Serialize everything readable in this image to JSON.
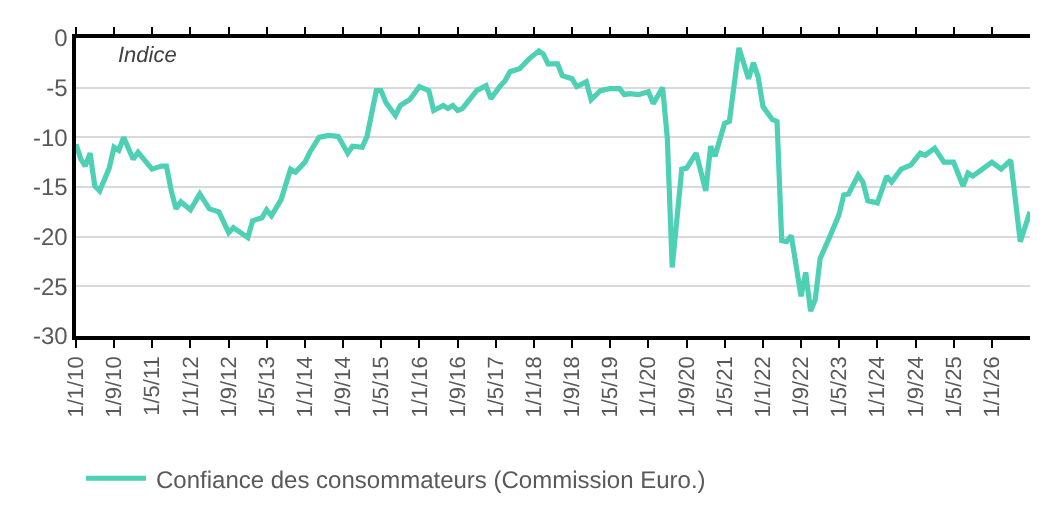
{
  "chart_data": {
    "type": "line",
    "annotations": [
      "Indice"
    ],
    "x": [
      "2010-01",
      "2010-02",
      "2010-03",
      "2010-04",
      "2010-05",
      "2010-06",
      "2010-08",
      "2010-09",
      "2010-10",
      "2010-11",
      "2011-01",
      "2011-02",
      "2011-05",
      "2011-07",
      "2011-08",
      "2011-09",
      "2011-10",
      "2011-11",
      "2012-01",
      "2012-03",
      "2012-05",
      "2012-07",
      "2012-09",
      "2012-10",
      "2013-01",
      "2013-02",
      "2013-04",
      "2013-05",
      "2013-06",
      "2013-08",
      "2013-10",
      "2013-11",
      "2014-01",
      "2014-02",
      "2014-04",
      "2014-06",
      "2014-08",
      "2014-10",
      "2014-11",
      "2015-01",
      "2015-02",
      "2015-04",
      "2015-05",
      "2015-06",
      "2015-08",
      "2015-09",
      "2015-11",
      "2016-01",
      "2016-03",
      "2016-04",
      "2016-06",
      "2016-07",
      "2016-08",
      "2016-09",
      "2016-10",
      "2017-01",
      "2017-03",
      "2017-04",
      "2017-06",
      "2017-07",
      "2017-08",
      "2017-10",
      "2017-12",
      "2018-02",
      "2018-03",
      "2018-04",
      "2018-06",
      "2018-07",
      "2018-09",
      "2018-10",
      "2018-12",
      "2019-01",
      "2019-03",
      "2019-05",
      "2019-07",
      "2019-08",
      "2019-09",
      "2019-11",
      "2020-01",
      "2020-02",
      "2020-04",
      "2020-05",
      "2020-06",
      "2020-08",
      "2020-09",
      "2020-11",
      "2021-01",
      "2021-02",
      "2021-03",
      "2021-05",
      "2021-06",
      "2021-08",
      "2021-10",
      "2021-11",
      "2021-12",
      "2022-01",
      "2022-03",
      "2022-04",
      "2022-05",
      "2022-06",
      "2022-07",
      "2022-09",
      "2022-10",
      "2022-11",
      "2022-12",
      "2023-01",
      "2023-03",
      "2023-05",
      "2023-06",
      "2023-07",
      "2023-09",
      "2023-10",
      "2023-11",
      "2024-01",
      "2024-03",
      "2024-04",
      "2024-06",
      "2024-08",
      "2024-10",
      "2024-11",
      "2025-01",
      "2025-03",
      "2025-05",
      "2025-07",
      "2025-08",
      "2025-09",
      "2025-11",
      "2026-01",
      "2026-03",
      "2026-05",
      "2026-07",
      "2026-09"
    ],
    "series": [
      {
        "name": "Confiance des consommateurs (Commission Euro.)",
        "color": "#4dd0b4",
        "values": [
          -10.7,
          -12.2,
          -12.9,
          -11.6,
          -14.9,
          -15.4,
          -13.1,
          -11.0,
          -11.3,
          -10.0,
          -12.2,
          -11.5,
          -13.2,
          -12.9,
          -12.9,
          -15.4,
          -17.2,
          -16.5,
          -17.3,
          -15.7,
          -17.2,
          -17.5,
          -19.6,
          -19.1,
          -20.1,
          -18.4,
          -18.1,
          -17.3,
          -17.9,
          -16.3,
          -13.2,
          -13.5,
          -12.5,
          -11.5,
          -10.0,
          -9.8,
          -9.9,
          -11.6,
          -10.9,
          -11.0,
          -9.9,
          -5.3,
          -5.3,
          -6.5,
          -7.8,
          -6.8,
          -6.2,
          -4.9,
          -5.3,
          -7.3,
          -6.8,
          -7.1,
          -6.8,
          -7.3,
          -7.1,
          -5.3,
          -4.8,
          -6.1,
          -4.8,
          -4.3,
          -3.4,
          -3.1,
          -2.1,
          -1.3,
          -1.6,
          -2.6,
          -2.6,
          -3.8,
          -4.1,
          -4.9,
          -4.4,
          -6.2,
          -5.3,
          -5.1,
          -5.1,
          -5.7,
          -5.6,
          -5.7,
          -5.4,
          -6.6,
          -5.0,
          -10.1,
          -23.1,
          -13.2,
          -13.1,
          -11.6,
          -15.4,
          -10.9,
          -11.9,
          -8.6,
          -8.4,
          -1.0,
          -4.1,
          -2.5,
          -3.9,
          -6.9,
          -8.2,
          -8.4,
          -20.4,
          -20.5,
          -19.9,
          -26.0,
          -23.6,
          -27.5,
          -26.3,
          -22.2,
          -20.1,
          -17.8,
          -15.8,
          -15.7,
          -13.8,
          -14.5,
          -16.4,
          -16.6,
          -13.9,
          -14.5,
          -13.2,
          -12.8,
          -11.6,
          -11.8,
          -11.1,
          -12.5,
          -12.5,
          -14.9,
          -13.6,
          -13.9,
          -13.2,
          -12.5,
          -13.2,
          -12.3,
          -20.5,
          -17.5
        ]
      }
    ],
    "xlim": [
      "2010-01-01",
      "2026-09-01"
    ],
    "xticks": [
      {
        "value": "2010-01-01",
        "label": "1/1/10"
      },
      {
        "value": "2010-09-01",
        "label": "1/9/10"
      },
      {
        "value": "2011-05-01",
        "label": "1/5/11"
      },
      {
        "value": "2012-01-01",
        "label": "1/1/12"
      },
      {
        "value": "2012-09-01",
        "label": "1/9/12"
      },
      {
        "value": "2013-05-01",
        "label": "1/5/13"
      },
      {
        "value": "2014-01-01",
        "label": "1/1/14"
      },
      {
        "value": "2014-09-01",
        "label": "1/9/14"
      },
      {
        "value": "2015-05-01",
        "label": "1/5/15"
      },
      {
        "value": "2016-01-01",
        "label": "1/1/16"
      },
      {
        "value": "2016-09-01",
        "label": "1/9/16"
      },
      {
        "value": "2017-05-01",
        "label": "1/5/17"
      },
      {
        "value": "2018-01-01",
        "label": "1/1/18"
      },
      {
        "value": "2018-09-01",
        "label": "1/9/18"
      },
      {
        "value": "2019-05-01",
        "label": "1/5/19"
      },
      {
        "value": "2020-01-01",
        "label": "1/1/20"
      },
      {
        "value": "2020-09-01",
        "label": "1/9/20"
      },
      {
        "value": "2021-05-01",
        "label": "1/5/21"
      },
      {
        "value": "2022-01-01",
        "label": "1/1/22"
      },
      {
        "value": "2022-09-01",
        "label": "1/9/22"
      },
      {
        "value": "2023-05-01",
        "label": "1/5/23"
      },
      {
        "value": "2024-01-01",
        "label": "1/1/24"
      },
      {
        "value": "2024-09-01",
        "label": "1/9/24"
      },
      {
        "value": "2025-05-01",
        "label": "1/5/25"
      },
      {
        "value": "2026-01-01",
        "label": "1/1/26"
      }
    ],
    "ylim": [
      -30,
      0
    ],
    "yticks": [
      0,
      -5,
      -10,
      -15,
      -20,
      -25,
      -30
    ],
    "grid": "y",
    "legend": "bottom",
    "marker": "none",
    "line_style": "solid"
  }
}
